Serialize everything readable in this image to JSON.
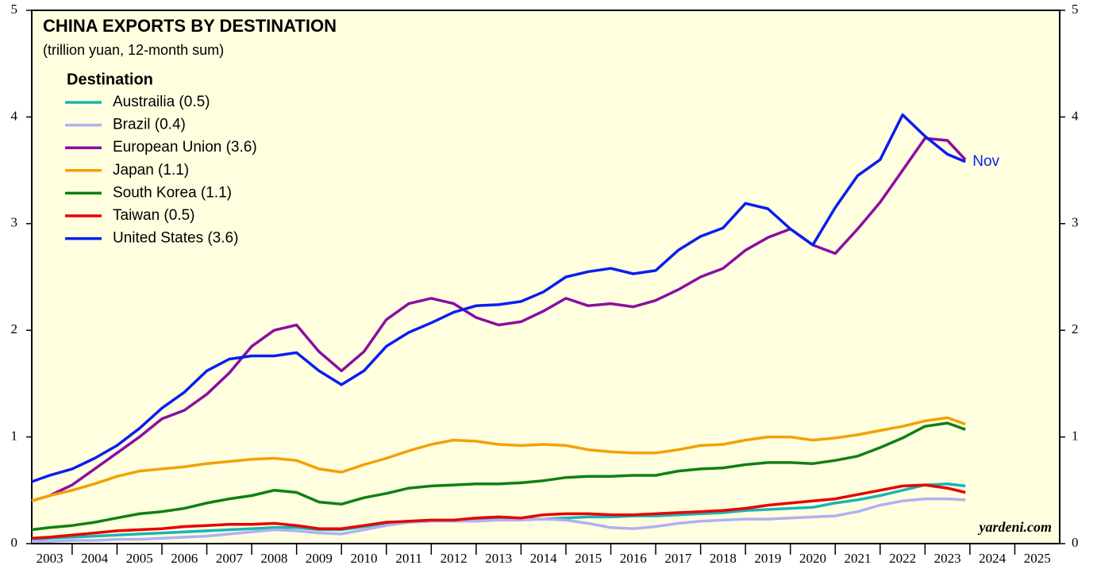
{
  "chart_data": {
    "type": "line",
    "title": "CHINA EXPORTS BY DESTINATION",
    "subtitle": "(trillion yuan, 12-month sum)",
    "legend_title": "Destination",
    "legend": "upper left",
    "annotations": {
      "end_label": "Nov",
      "source": "yardeni.com"
    },
    "x": [
      2003.1,
      2003.5,
      2004,
      2004.5,
      2005,
      2005.5,
      2006,
      2006.5,
      2007,
      2007.5,
      2008,
      2008.5,
      2009,
      2009.5,
      2010,
      2010.5,
      2011,
      2011.5,
      2012,
      2012.5,
      2013,
      2013.5,
      2014,
      2014.5,
      2015,
      2015.5,
      2016,
      2016.5,
      2017,
      2017.5,
      2018,
      2018.5,
      2019,
      2019.5,
      2020,
      2020.5,
      2021,
      2021.5,
      2022,
      2022.5,
      2023,
      2023.5,
      2023.9
    ],
    "xlim": [
      2003.1,
      2026
    ],
    "xticks": [
      2003,
      2004,
      2005,
      2006,
      2007,
      2008,
      2009,
      2010,
      2011,
      2012,
      2013,
      2014,
      2015,
      2016,
      2017,
      2018,
      2019,
      2020,
      2021,
      2022,
      2023,
      2024,
      2025
    ],
    "ylim": [
      0,
      5
    ],
    "yticks": [
      0,
      1,
      2,
      3,
      4,
      5
    ],
    "series": [
      {
        "name": "Austrailia (0.5)",
        "color": "#1ab5b5",
        "values": [
          0.04,
          0.05,
          0.06,
          0.07,
          0.08,
          0.09,
          0.1,
          0.11,
          0.12,
          0.13,
          0.14,
          0.15,
          0.15,
          0.13,
          0.13,
          0.16,
          0.18,
          0.2,
          0.21,
          0.21,
          0.22,
          0.23,
          0.23,
          0.23,
          0.24,
          0.25,
          0.25,
          0.26,
          0.26,
          0.27,
          0.28,
          0.29,
          0.31,
          0.32,
          0.33,
          0.34,
          0.38,
          0.41,
          0.45,
          0.5,
          0.55,
          0.56,
          0.54
        ]
      },
      {
        "name": "Brazil (0.4)",
        "color": "#b0b0f2",
        "values": [
          0.02,
          0.02,
          0.03,
          0.03,
          0.04,
          0.04,
          0.05,
          0.06,
          0.07,
          0.09,
          0.11,
          0.13,
          0.12,
          0.1,
          0.09,
          0.13,
          0.17,
          0.2,
          0.21,
          0.21,
          0.21,
          0.22,
          0.22,
          0.23,
          0.22,
          0.19,
          0.15,
          0.14,
          0.16,
          0.19,
          0.21,
          0.22,
          0.23,
          0.23,
          0.24,
          0.25,
          0.26,
          0.3,
          0.36,
          0.4,
          0.42,
          0.42,
          0.41
        ]
      },
      {
        "name": "European Union (3.6)",
        "color": "#8b0ea0",
        "values": [
          0.4,
          0.45,
          0.55,
          0.7,
          0.85,
          1.0,
          1.17,
          1.25,
          1.4,
          1.6,
          1.85,
          2.0,
          2.05,
          1.8,
          1.62,
          1.8,
          2.1,
          2.25,
          2.3,
          2.25,
          2.12,
          2.05,
          2.08,
          2.18,
          2.3,
          2.23,
          2.25,
          2.22,
          2.28,
          2.38,
          2.5,
          2.58,
          2.75,
          2.87,
          2.95,
          2.8,
          2.72,
          2.95,
          3.2,
          3.5,
          3.8,
          3.78,
          3.6
        ]
      },
      {
        "name": "Japan (1.1)",
        "color": "#f5a000",
        "values": [
          0.4,
          0.45,
          0.5,
          0.56,
          0.63,
          0.68,
          0.7,
          0.72,
          0.75,
          0.77,
          0.79,
          0.8,
          0.78,
          0.7,
          0.67,
          0.74,
          0.8,
          0.87,
          0.93,
          0.97,
          0.96,
          0.93,
          0.92,
          0.93,
          0.92,
          0.88,
          0.86,
          0.85,
          0.85,
          0.88,
          0.92,
          0.93,
          0.97,
          1.0,
          1.0,
          0.97,
          0.99,
          1.02,
          1.06,
          1.1,
          1.15,
          1.18,
          1.12
        ]
      },
      {
        "name": "South Korea (1.1)",
        "color": "#108010",
        "values": [
          0.13,
          0.15,
          0.17,
          0.2,
          0.24,
          0.28,
          0.3,
          0.33,
          0.38,
          0.42,
          0.45,
          0.5,
          0.48,
          0.39,
          0.37,
          0.43,
          0.47,
          0.52,
          0.54,
          0.55,
          0.56,
          0.56,
          0.57,
          0.59,
          0.62,
          0.63,
          0.63,
          0.64,
          0.64,
          0.68,
          0.7,
          0.71,
          0.74,
          0.76,
          0.76,
          0.75,
          0.78,
          0.82,
          0.9,
          0.99,
          1.1,
          1.13,
          1.07
        ]
      },
      {
        "name": "Taiwan (0.5)",
        "color": "#e80000",
        "values": [
          0.05,
          0.06,
          0.08,
          0.1,
          0.12,
          0.13,
          0.14,
          0.16,
          0.17,
          0.18,
          0.18,
          0.19,
          0.17,
          0.14,
          0.14,
          0.17,
          0.2,
          0.21,
          0.22,
          0.22,
          0.24,
          0.25,
          0.24,
          0.27,
          0.28,
          0.28,
          0.27,
          0.27,
          0.28,
          0.29,
          0.3,
          0.31,
          0.33,
          0.36,
          0.38,
          0.4,
          0.42,
          0.46,
          0.5,
          0.54,
          0.55,
          0.52,
          0.48
        ]
      },
      {
        "name": "United States (3.6)",
        "color": "#0a1eee",
        "values": [
          0.58,
          0.64,
          0.7,
          0.8,
          0.92,
          1.08,
          1.27,
          1.42,
          1.62,
          1.73,
          1.76,
          1.76,
          1.79,
          1.62,
          1.49,
          1.62,
          1.85,
          1.98,
          2.07,
          2.17,
          2.23,
          2.24,
          2.27,
          2.36,
          2.5,
          2.55,
          2.58,
          2.53,
          2.56,
          2.75,
          2.88,
          2.96,
          3.19,
          3.14,
          2.95,
          2.8,
          3.15,
          3.45,
          3.6,
          4.02,
          3.82,
          3.65,
          3.58
        ]
      }
    ]
  }
}
